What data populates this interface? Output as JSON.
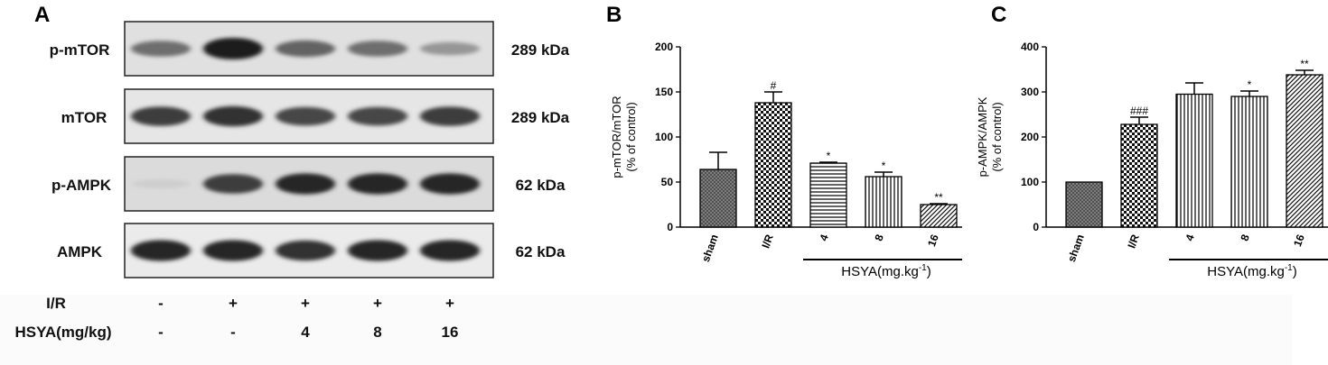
{
  "panels": {
    "a": "A",
    "b": "B",
    "c": "C"
  },
  "blot": {
    "rows": [
      {
        "label": "p-mTOR",
        "size": "289 kDa",
        "intensity": [
          0.6,
          1.0,
          0.65,
          0.6,
          0.4
        ],
        "bg": 0.12
      },
      {
        "label": "mTOR",
        "size": "289 kDa",
        "intensity": [
          0.85,
          0.9,
          0.8,
          0.8,
          0.85
        ],
        "bg": 0.1
      },
      {
        "label": "p-AMPK",
        "size": "62 kDa",
        "intensity": [
          0.12,
          0.85,
          0.95,
          0.95,
          0.95
        ],
        "bg": 0.14
      },
      {
        "label": "AMPK",
        "size": "62 kDa",
        "intensity": [
          0.95,
          0.95,
          0.9,
          0.95,
          0.95
        ],
        "bg": 0.08
      }
    ],
    "conditions": [
      {
        "label": "I/R",
        "values": [
          "-",
          "+",
          "+",
          "+",
          "+"
        ]
      },
      {
        "label": "HSYA(mg/kg)",
        "values": [
          "-",
          "-",
          "4",
          "8",
          "16"
        ]
      }
    ]
  },
  "chart_data": [
    {
      "type": "bar",
      "ylabel_line1": "p-mTOR/mTOR",
      "ylabel_line2": "(% of control)",
      "ylim": [
        0,
        200
      ],
      "yticks": [
        0,
        50,
        100,
        150,
        200
      ],
      "categories": [
        "sham",
        "I/R",
        "4",
        "8",
        "16"
      ],
      "values": [
        64,
        138,
        71,
        56,
        25
      ],
      "errors": [
        19,
        12,
        1,
        5,
        1
      ],
      "significance": [
        "",
        "#",
        "*",
        "*",
        "**"
      ],
      "patterns": [
        "crosshatch",
        "checker",
        "horizontal",
        "vertical",
        "diagonal"
      ],
      "group_label": "HSYA(mg.kg",
      "group_superscript": "-1",
      "group_suffix": ")"
    },
    {
      "type": "bar",
      "ylabel_line1": "p-AMPK/AMPK",
      "ylabel_line2": "(% of control)",
      "ylim": [
        0,
        400
      ],
      "yticks": [
        0,
        100,
        200,
        300,
        400
      ],
      "categories": [
        "sham",
        "I/R",
        "4",
        "8",
        "16"
      ],
      "values": [
        100,
        228,
        295,
        290,
        338
      ],
      "errors": [
        0,
        16,
        25,
        12,
        10
      ],
      "significance": [
        "",
        "###",
        "",
        "*",
        "**"
      ],
      "patterns": [
        "crosshatch",
        "checker",
        "vertical",
        "vertical",
        "diagonal"
      ],
      "group_label": "HSYA(mg.kg",
      "group_superscript": "-1",
      "group_suffix": ")"
    }
  ]
}
